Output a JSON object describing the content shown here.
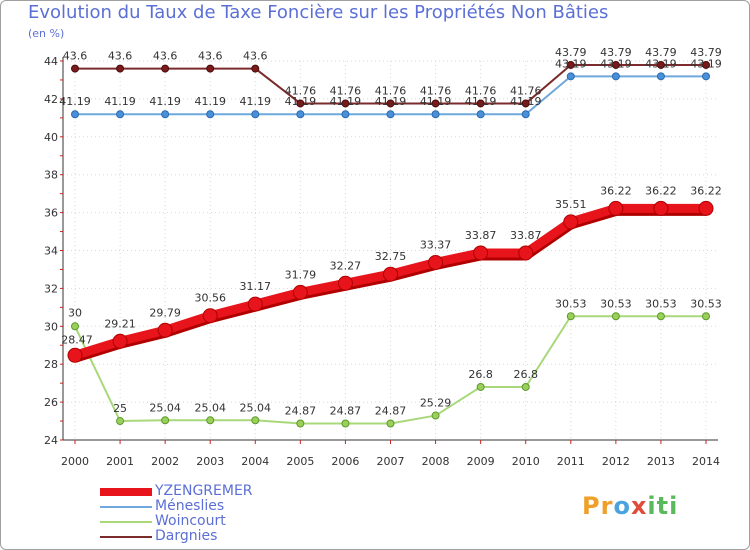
{
  "title": "Evolution du Taux de Taxe Foncière sur les Propriétés Non Bâties",
  "unit": "(en %)",
  "logo": {
    "p1": "Pr",
    "p2": "o",
    "p3": "x",
    "p4": "iti"
  },
  "chart_data": {
    "type": "line",
    "title": "Evolution du Taux de Taxe Foncière sur les Propriétés Non Bâties",
    "ylabel": "(en %)",
    "xlabel": "",
    "ylim": [
      24,
      44
    ],
    "yticks": [
      "24",
      "26",
      "28",
      "30",
      "32",
      "34",
      "36",
      "38",
      "40",
      "42",
      "44"
    ],
    "categories": [
      "2000",
      "2001",
      "2002",
      "2003",
      "2004",
      "2005",
      "2006",
      "2007",
      "2008",
      "2009",
      "2010",
      "2011",
      "2012",
      "2013",
      "2014"
    ],
    "grid": true,
    "legend_position": "bottom-left",
    "series": [
      {
        "name": "Méneslies",
        "color": "#6fa8dc",
        "values": [
          41.19,
          41.19,
          41.19,
          41.19,
          41.19,
          41.19,
          41.19,
          41.19,
          41.19,
          41.19,
          41.19,
          43.19,
          43.19,
          43.19,
          43.19
        ],
        "labels": [
          "41.19",
          "41.19",
          "41.19",
          "41.19",
          "41.19",
          "41.19",
          "41.19",
          "41.19",
          "41.19",
          "41.19",
          "41.19",
          "43.19",
          "43.19",
          "43.19",
          "43.19"
        ]
      },
      {
        "name": "Woincourt",
        "color": "#a8d87a",
        "values": [
          30,
          25,
          25.04,
          25.04,
          25.04,
          24.87,
          24.87,
          24.87,
          25.29,
          26.8,
          26.8,
          30.53,
          30.53,
          30.53,
          30.53
        ],
        "labels": [
          "30",
          "25",
          "25.04",
          "25.04",
          "25.04",
          "24.87",
          "24.87",
          "24.87",
          "25.29",
          "26.8",
          "26.8",
          "30.53",
          "30.53",
          "30.53",
          "30.53"
        ]
      },
      {
        "name": "Dargnies",
        "color": "#7b2b2b",
        "values": [
          43.6,
          43.6,
          43.6,
          43.6,
          43.6,
          41.76,
          41.76,
          41.76,
          41.76,
          41.76,
          41.76,
          43.79,
          43.79,
          43.79,
          43.79
        ],
        "labels": [
          "43.6",
          "43.6",
          "43.6",
          "43.6",
          "43.6",
          "41.76",
          "41.76",
          "41.76",
          "41.76",
          "41.76",
          "41.76",
          "43.79",
          "43.79",
          "43.79",
          "43.79"
        ]
      },
      {
        "name": "YZENGREMER",
        "color": "#e8141c",
        "values": [
          28.47,
          29.21,
          29.79,
          30.56,
          31.17,
          31.79,
          32.27,
          32.75,
          33.37,
          33.87,
          33.87,
          35.51,
          36.22,
          36.22,
          36.22
        ],
        "labels": [
          "28.47",
          "29.21",
          "29.79",
          "30.56",
          "31.17",
          "31.79",
          "32.27",
          "32.75",
          "33.37",
          "33.87",
          "33.87",
          "35.51",
          "36.22",
          "36.22",
          "36.22"
        ]
      }
    ],
    "legend_order": [
      "YZENGREMER",
      "Méneslies",
      "Woincourt",
      "Dargnies"
    ]
  }
}
